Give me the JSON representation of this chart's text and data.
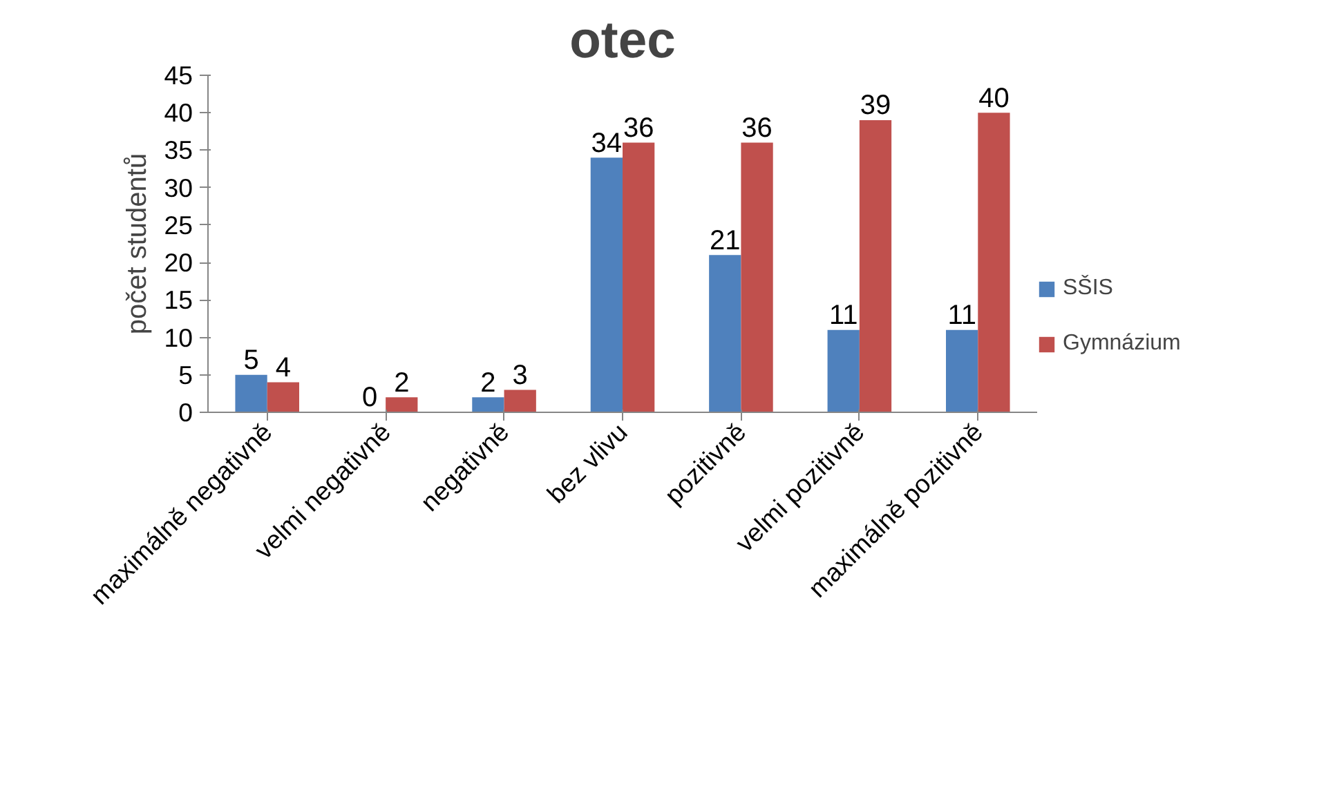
{
  "chart_data": {
    "type": "bar",
    "title": "otec",
    "ylabel": "počet studentů",
    "categories": [
      "maximálně negativně",
      "velmi negativně",
      "negativně",
      "bez vlivu",
      "pozitivně",
      "velmi pozitivně",
      "maximálně pozitivně"
    ],
    "series": [
      {
        "name": "SŠIS",
        "color": "#4f81bd",
        "values": [
          5,
          0,
          2,
          34,
          21,
          11,
          11
        ]
      },
      {
        "name": "Gymnázium",
        "color": "#c0504d",
        "values": [
          4,
          2,
          3,
          36,
          36,
          39,
          40
        ]
      }
    ],
    "ylim": [
      0,
      45
    ],
    "yticks": [
      0,
      5,
      10,
      15,
      20,
      25,
      30,
      35,
      40,
      45
    ],
    "grid": false,
    "legend": "right",
    "data_labels": true
  }
}
